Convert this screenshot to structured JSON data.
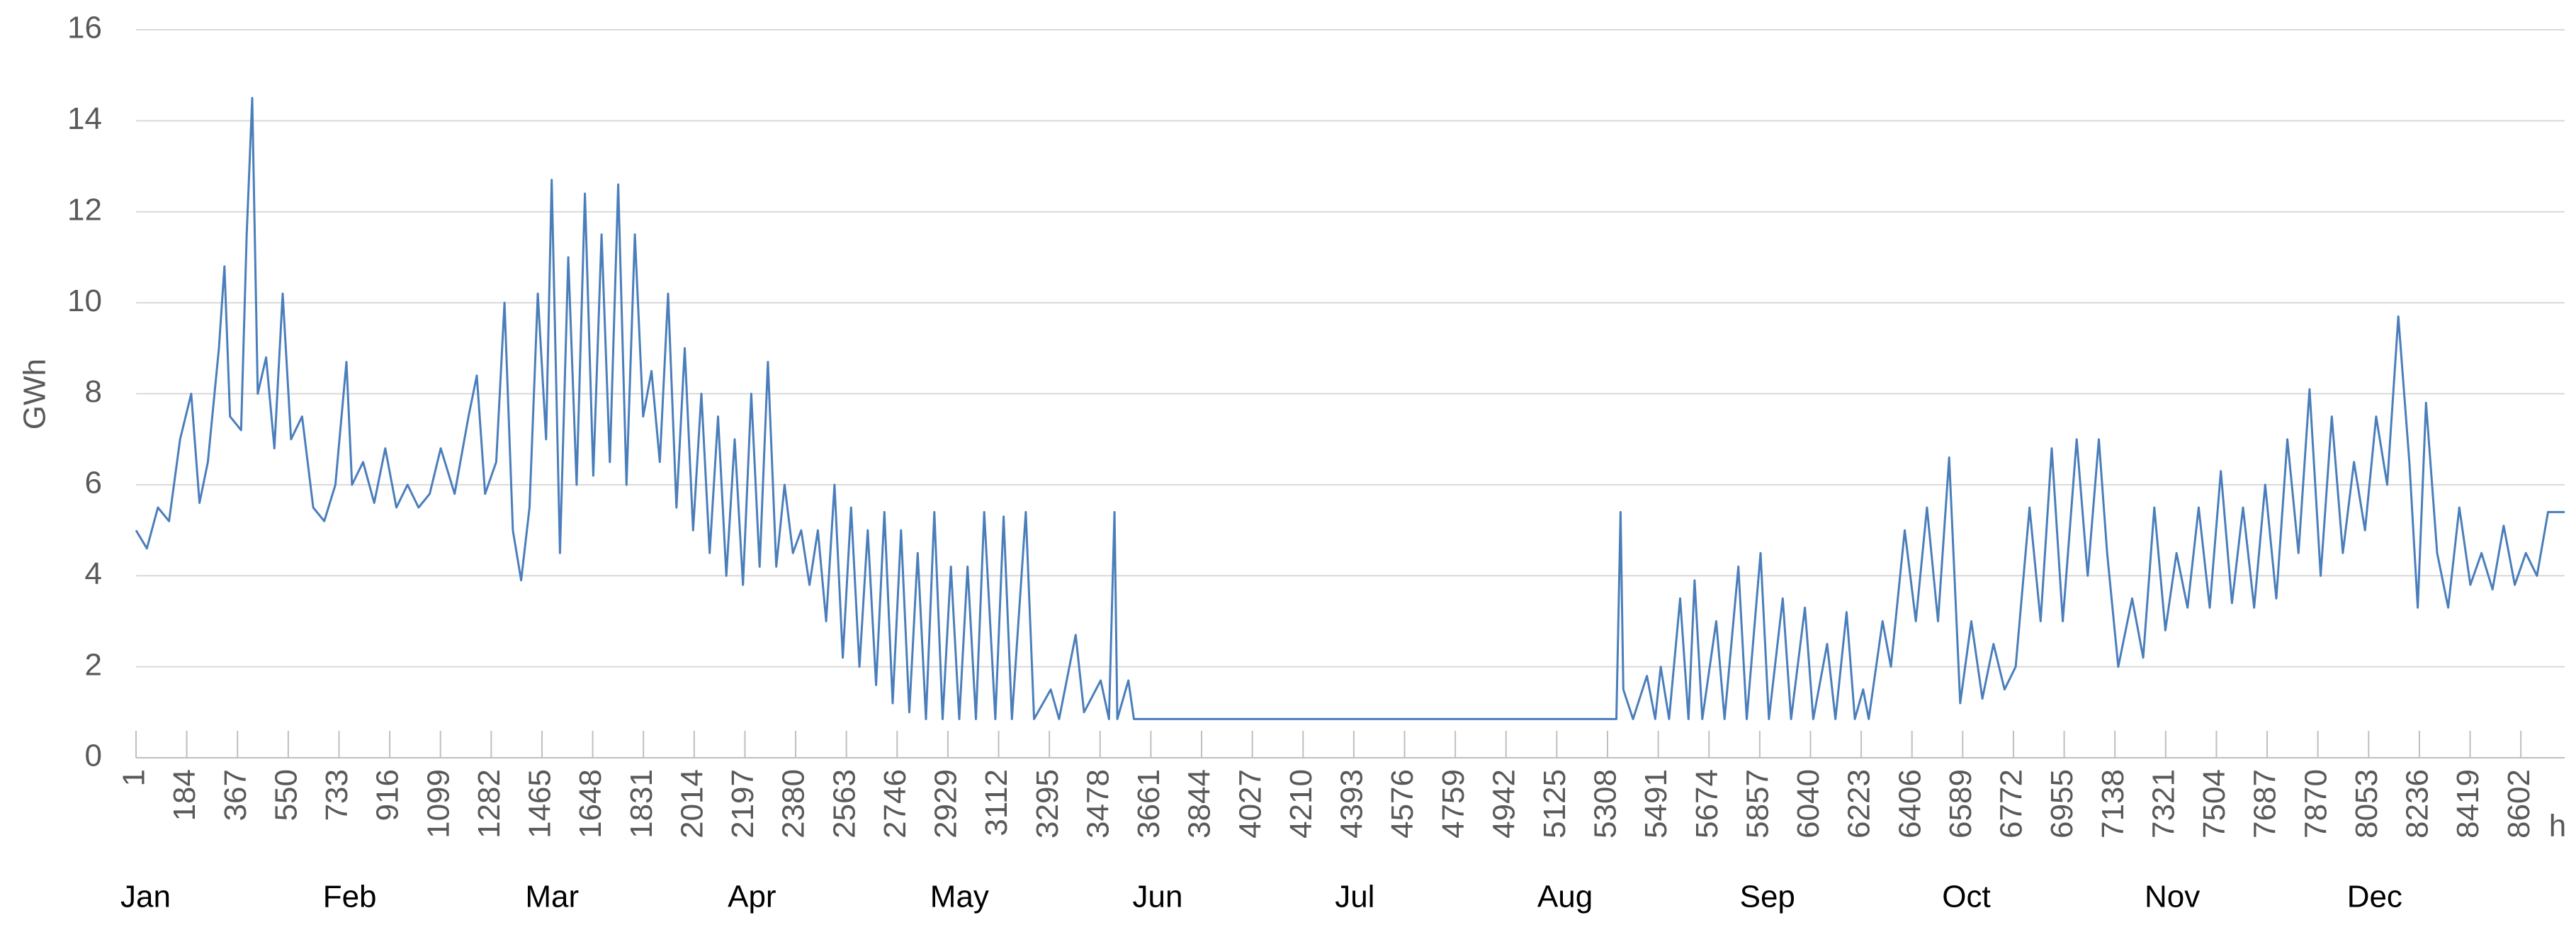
{
  "chart_data": {
    "type": "line",
    "y_label": "GWh",
    "x_label": "h",
    "months": [
      "Jan",
      "Feb",
      "Mar",
      "Apr",
      "May",
      "Jun",
      "Jul",
      "Aug",
      "Sep",
      "Oct",
      "Nov",
      "Dec"
    ],
    "xlim": [
      1,
      8760
    ],
    "ylim": [
      0,
      16
    ],
    "yticks": [
      0,
      2,
      4,
      6,
      8,
      10,
      12,
      14,
      16
    ],
    "xticks": [
      1,
      184,
      367,
      550,
      733,
      916,
      1099,
      1282,
      1465,
      1648,
      1831,
      2014,
      2197,
      2380,
      2563,
      2746,
      2929,
      3112,
      3295,
      3478,
      3661,
      3844,
      4027,
      4210,
      4393,
      4576,
      4759,
      4942,
      5125,
      5308,
      5491,
      5674,
      5857,
      6040,
      6223,
      6406,
      6589,
      6772,
      6955,
      7138,
      7321,
      7504,
      7687,
      7870,
      8053,
      8236,
      8419,
      8602
    ],
    "grid": true,
    "series": [
      {
        "color": "#4a7ebb",
        "x": [
          1,
          40,
          80,
          120,
          160,
          200,
          230,
          260,
          300,
          320,
          340,
          380,
          400,
          420,
          440,
          470,
          500,
          530,
          560,
          600,
          640,
          680,
          720,
          760,
          780,
          820,
          860,
          900,
          940,
          980,
          1020,
          1060,
          1100,
          1150,
          1200,
          1230,
          1260,
          1300,
          1330,
          1360,
          1390,
          1420,
          1450,
          1480,
          1500,
          1530,
          1560,
          1590,
          1620,
          1650,
          1680,
          1710,
          1740,
          1770,
          1800,
          1830,
          1860,
          1890,
          1920,
          1950,
          1980,
          2010,
          2040,
          2070,
          2100,
          2130,
          2160,
          2190,
          2220,
          2250,
          2280,
          2310,
          2340,
          2370,
          2400,
          2430,
          2460,
          2490,
          2520,
          2550,
          2580,
          2610,
          2640,
          2670,
          2700,
          2730,
          2760,
          2790,
          2820,
          2850,
          2880,
          2910,
          2940,
          2970,
          3000,
          3030,
          3060,
          3100,
          3130,
          3160,
          3210,
          3240,
          3300,
          3330,
          3390,
          3420,
          3480,
          3510,
          3530,
          3540,
          3580,
          3600,
          5340,
          5355,
          5365,
          5400,
          5450,
          5480,
          5500,
          5530,
          5570,
          5600,
          5622,
          5650,
          5700,
          5730,
          5780,
          5810,
          5860,
          5890,
          5940,
          5970,
          6020,
          6050,
          6100,
          6130,
          6170,
          6200,
          6230,
          6250,
          6300,
          6330,
          6380,
          6420,
          6460,
          6500,
          6540,
          6580,
          6620,
          6660,
          6700,
          6740,
          6780,
          6830,
          6870,
          6910,
          6950,
          7000,
          7040,
          7080,
          7110,
          7150,
          7200,
          7240,
          7280,
          7320,
          7360,
          7400,
          7440,
          7480,
          7520,
          7560,
          7600,
          7640,
          7680,
          7720,
          7760,
          7800,
          7840,
          7880,
          7920,
          7960,
          8000,
          8040,
          8080,
          8120,
          8160,
          8200,
          8230,
          8260,
          8300,
          8340,
          8380,
          8420,
          8460,
          8500,
          8540,
          8580,
          8620,
          8660,
          8700,
          8760
        ],
        "values": [
          5.0,
          4.6,
          5.5,
          5.2,
          7.0,
          8.0,
          5.6,
          6.5,
          9.0,
          10.8,
          7.5,
          7.2,
          11.5,
          14.5,
          8.0,
          8.8,
          6.8,
          10.2,
          7.0,
          7.5,
          5.5,
          5.2,
          6.0,
          8.7,
          6.0,
          6.5,
          5.6,
          6.8,
          5.5,
          6.0,
          5.5,
          5.8,
          6.8,
          5.8,
          7.5,
          8.4,
          5.8,
          6.5,
          10.0,
          5.0,
          3.9,
          5.5,
          10.2,
          7.0,
          12.7,
          4.5,
          11.0,
          6.0,
          12.4,
          6.2,
          11.5,
          6.5,
          12.6,
          6.0,
          11.5,
          7.5,
          8.5,
          6.5,
          10.2,
          5.5,
          9.0,
          5.0,
          8.0,
          4.5,
          7.5,
          4.0,
          7.0,
          3.8,
          8.0,
          4.2,
          8.7,
          4.2,
          6.0,
          4.5,
          5.0,
          3.8,
          5.0,
          3.0,
          6.0,
          2.2,
          5.5,
          2.0,
          5.0,
          1.6,
          5.4,
          1.2,
          5.0,
          1.0,
          4.5,
          0.85,
          5.4,
          0.85,
          4.2,
          0.85,
          4.2,
          0.85,
          5.4,
          0.85,
          5.3,
          0.85,
          5.4,
          0.85,
          1.5,
          0.85,
          2.7,
          1.0,
          1.7,
          0.85,
          5.4,
          0.85,
          1.7,
          0.85,
          0.85,
          5.4,
          1.5,
          0.85,
          1.8,
          0.85,
          2.0,
          0.85,
          3.5,
          0.85,
          3.9,
          0.85,
          3.0,
          0.85,
          4.2,
          0.85,
          4.5,
          0.85,
          3.5,
          0.85,
          3.3,
          0.85,
          2.5,
          0.85,
          3.2,
          0.85,
          1.5,
          0.85,
          3.0,
          2.0,
          5.0,
          3.0,
          5.5,
          3.0,
          6.6,
          1.2,
          3.0,
          1.3,
          2.5,
          1.5,
          2.0,
          5.5,
          3.0,
          6.8,
          3.0,
          7.0,
          4.0,
          7.0,
          4.5,
          2.0,
          3.5,
          2.2,
          5.5,
          2.8,
          4.5,
          3.3,
          5.5,
          3.3,
          6.3,
          3.4,
          5.5,
          3.3,
          6.0,
          3.5,
          7.0,
          4.5,
          8.1,
          4.0,
          7.5,
          4.5,
          6.5,
          5.0,
          7.5,
          6.0,
          9.7,
          6.5,
          3.3,
          7.8,
          4.5,
          3.3,
          5.5,
          3.8,
          4.5,
          3.7,
          5.1,
          3.8,
          4.5,
          4.0,
          5.4,
          5.4
        ]
      }
    ]
  }
}
